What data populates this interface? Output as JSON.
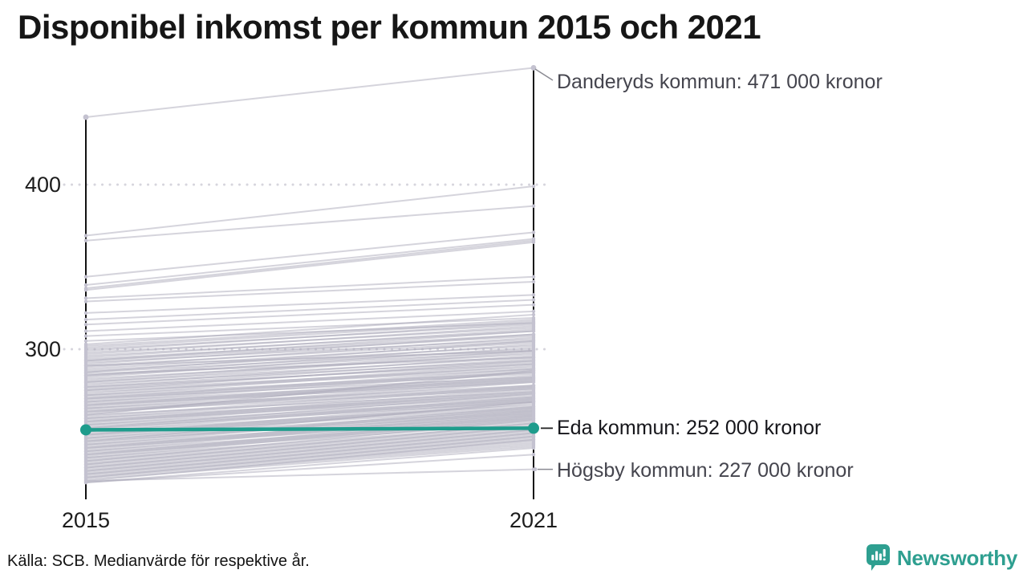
{
  "title": "Disponibel inkomst per kommun 2015 och 2021",
  "source": "Källa: SCB. Medianvärde för respektive år.",
  "branding": {
    "name": "Newsworthy",
    "icon": "newsworthy-bubble-chart-icon",
    "color": "#2E9F90"
  },
  "colors": {
    "highlight": "#1E9C8C",
    "line": "rgba(172,169,186,0.5)",
    "line_dot": "#c4c2d0",
    "grid": "#d6d5dd",
    "axis": "#111111",
    "connector_gray": "#8a8a92",
    "connector_dark": "#222222"
  },
  "chart_data": {
    "type": "line",
    "subtype": "slope-chart",
    "title": "Disponibel inkomst per kommun 2015 och 2021",
    "x_categories": [
      "2015",
      "2021"
    ],
    "y_ticks": [
      400,
      300
    ],
    "y_tick_labels": [
      "400",
      "300"
    ],
    "y_unit": "tusen kronor",
    "grid": "dotted-horizontal",
    "annotations": [
      {
        "label": "Danderyds kommun: 471 000 kronor",
        "series": "Danderyds kommun",
        "value_2021": 471
      },
      {
        "label": "Eda kommun: 252 000 kronor",
        "series": "Eda kommun",
        "value_2021": 252,
        "highlighted": true
      },
      {
        "label": "Högsby kommun: 227 000 kronor",
        "series": "Högsby kommun",
        "value_2021": 227
      }
    ],
    "highlight_line": {
      "name": "Eda kommun",
      "values_2015_2021": [
        251,
        252
      ]
    },
    "lines": [
      [
        441,
        471
      ],
      [
        369,
        399
      ],
      [
        366,
        387
      ],
      [
        344,
        371
      ],
      [
        339,
        367
      ],
      [
        337,
        366
      ],
      [
        336,
        365
      ],
      [
        331,
        344
      ],
      [
        329,
        341
      ],
      [
        322,
        333
      ],
      [
        318,
        330
      ],
      [
        315,
        327
      ],
      [
        311,
        323
      ],
      [
        308,
        319
      ],
      [
        305,
        316
      ],
      [
        303,
        321
      ],
      [
        302,
        318
      ],
      [
        301,
        317
      ],
      [
        300,
        315
      ],
      [
        299,
        316
      ],
      [
        298,
        313
      ],
      [
        297,
        314
      ],
      [
        296,
        311
      ],
      [
        295,
        312
      ],
      [
        294,
        309
      ],
      [
        293,
        311
      ],
      [
        293,
        308
      ],
      [
        292,
        306
      ],
      [
        291,
        309
      ],
      [
        290,
        305
      ],
      [
        290,
        299
      ],
      [
        289,
        307
      ],
      [
        288,
        304
      ],
      [
        287,
        302
      ],
      [
        286,
        305
      ],
      [
        286,
        300
      ],
      [
        285,
        295
      ],
      [
        284,
        303
      ],
      [
        284,
        299
      ],
      [
        283,
        301
      ],
      [
        282,
        297
      ],
      [
        281,
        299
      ],
      [
        280,
        295
      ],
      [
        280,
        298
      ],
      [
        279,
        293
      ],
      [
        278,
        296
      ],
      [
        277,
        291
      ],
      [
        277,
        294
      ],
      [
        276,
        292
      ],
      [
        275,
        289
      ],
      [
        275,
        293
      ],
      [
        274,
        288
      ],
      [
        273,
        291
      ],
      [
        272,
        286
      ],
      [
        272,
        290
      ],
      [
        271,
        285
      ],
      [
        270,
        288
      ],
      [
        270,
        283
      ],
      [
        269,
        287
      ],
      [
        268,
        282
      ],
      [
        268,
        286
      ],
      [
        267,
        281
      ],
      [
        266,
        284
      ],
      [
        266,
        280
      ],
      [
        265,
        283
      ],
      [
        264,
        278
      ],
      [
        264,
        282
      ],
      [
        263,
        277
      ],
      [
        262,
        281
      ],
      [
        262,
        276
      ],
      [
        261,
        280
      ],
      [
        260,
        287
      ],
      [
        260,
        274
      ],
      [
        259,
        278
      ],
      [
        258,
        273
      ],
      [
        258,
        277
      ],
      [
        257,
        272
      ],
      [
        256,
        276
      ],
      [
        256,
        271
      ],
      [
        255,
        275
      ],
      [
        254,
        270
      ],
      [
        254,
        274
      ],
      [
        253,
        269
      ],
      [
        252,
        273
      ],
      [
        252,
        268
      ],
      [
        251,
        271
      ],
      [
        250,
        266
      ],
      [
        250,
        270
      ],
      [
        249,
        265
      ],
      [
        248,
        269
      ],
      [
        248,
        264
      ],
      [
        247,
        268
      ],
      [
        246,
        263
      ],
      [
        246,
        267
      ],
      [
        245,
        262
      ],
      [
        244,
        268
      ],
      [
        244,
        261
      ],
      [
        243,
        265
      ],
      [
        242,
        260
      ],
      [
        242,
        264
      ],
      [
        241,
        259
      ],
      [
        240,
        263
      ],
      [
        240,
        258
      ],
      [
        239,
        262
      ],
      [
        238,
        257
      ],
      [
        238,
        261
      ],
      [
        237,
        256
      ],
      [
        236,
        260
      ],
      [
        236,
        255
      ],
      [
        235,
        259
      ],
      [
        234,
        254
      ],
      [
        234,
        258
      ],
      [
        233,
        253
      ],
      [
        232,
        257
      ],
      [
        232,
        252
      ],
      [
        231,
        251
      ],
      [
        230,
        255
      ],
      [
        230,
        250
      ],
      [
        229,
        249
      ],
      [
        228,
        253
      ],
      [
        228,
        248
      ],
      [
        227,
        247
      ],
      [
        226,
        251
      ],
      [
        226,
        246
      ],
      [
        225,
        245
      ],
      [
        224,
        249
      ],
      [
        224,
        244
      ],
      [
        223,
        243
      ],
      [
        222,
        247
      ],
      [
        222,
        242
      ],
      [
        221,
        241
      ],
      [
        220,
        245
      ],
      [
        219,
        240
      ],
      [
        219,
        236
      ],
      [
        220,
        227
      ]
    ]
  }
}
